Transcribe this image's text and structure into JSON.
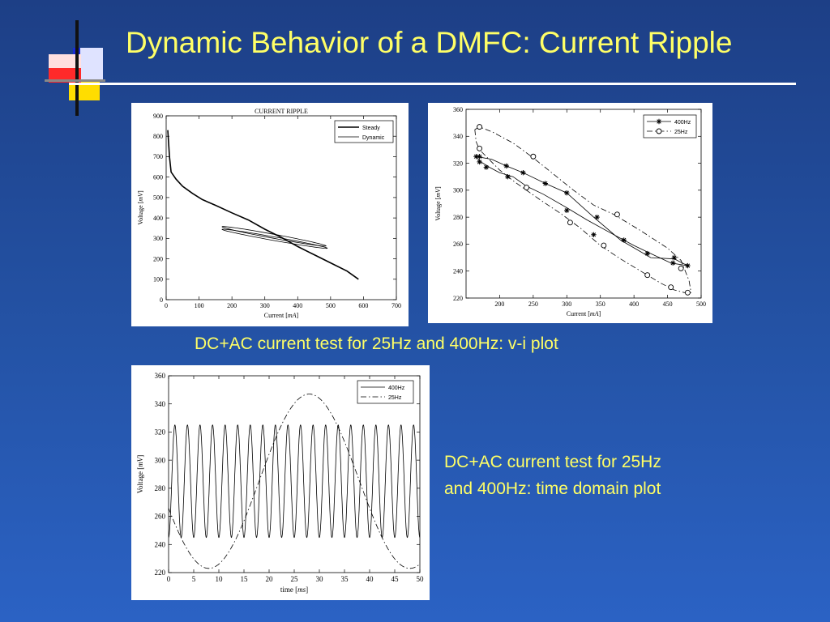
{
  "slide": {
    "title": "Dynamic Behavior of a DMFC: Current Ripple",
    "caption_vi": "DC+AC current test for 25Hz and 400Hz: v-i plot",
    "caption_time": [
      "DC+AC current test for 25Hz",
      "and 400Hz: time domain plot"
    ]
  },
  "colors": {
    "background": "#1d3f86",
    "title": "#ffff66",
    "rule": "#ffffff",
    "logo_red": "#ff2a2a",
    "logo_yellow": "#ffdd00",
    "logo_blue": "#1a2bd6"
  },
  "chart_data": [
    {
      "type": "line",
      "title": "CURRENT RIPPLE",
      "xlabel": "Current [mA]",
      "ylabel": "Voltage [mV]",
      "xlim": [
        0,
        700
      ],
      "ylim": [
        0,
        900
      ],
      "xticks": [
        0,
        100,
        200,
        300,
        400,
        500,
        600,
        700
      ],
      "yticks": [
        0,
        100,
        200,
        300,
        400,
        500,
        600,
        700,
        800,
        900
      ],
      "legend_placement": "top-right",
      "series": [
        {
          "name": "Steady",
          "style": "solid-thick",
          "points": [
            [
              5,
              830
            ],
            [
              10,
              700
            ],
            [
              15,
              625
            ],
            [
              30,
              590
            ],
            [
              50,
              555
            ],
            [
              80,
              520
            ],
            [
              110,
              490
            ],
            [
              150,
              462
            ],
            [
              200,
              425
            ],
            [
              250,
              390
            ],
            [
              300,
              345
            ],
            [
              350,
              305
            ],
            [
              400,
              260
            ],
            [
              450,
              220
            ],
            [
              500,
              180
            ],
            [
              550,
              140
            ],
            [
              585,
              100
            ]
          ]
        },
        {
          "name": "Dynamic",
          "style": "solid-thin",
          "loops": [
            {
              "center": [
                328,
                310
              ],
              "half_axis": [
                158,
                47
              ],
              "thickness": 10
            },
            {
              "center": [
                330,
                298
              ],
              "half_axis": [
                160,
                46
              ],
              "thickness": 9
            }
          ]
        }
      ]
    },
    {
      "type": "line",
      "title": "",
      "xlabel": "Current [mA]",
      "ylabel": "Voltage [mV]",
      "xlim": [
        150,
        500
      ],
      "ylim": [
        220,
        360
      ],
      "xticks": [
        200,
        250,
        300,
        350,
        400,
        450,
        500
      ],
      "yticks": [
        220,
        240,
        260,
        280,
        300,
        320,
        340,
        360
      ],
      "legend_placement": "top-right",
      "series": [
        {
          "name": "400Hz",
          "style": "solid",
          "marker": "star",
          "upper": [
            [
              165,
              325
            ],
            [
              188,
              323
            ],
            [
              210,
              318
            ],
            [
              235,
              313
            ],
            [
              268,
              305
            ],
            [
              300,
              298
            ],
            [
              340,
              280
            ],
            [
              380,
              263
            ],
            [
              425,
              250
            ],
            [
              460,
              249
            ],
            [
              480,
              244
            ]
          ],
          "lower": [
            [
              165,
              325
            ],
            [
              172,
              321
            ],
            [
              185,
              317
            ],
            [
              200,
              313
            ],
            [
              220,
              310
            ],
            [
              240,
              303
            ],
            [
              265,
              297
            ],
            [
              300,
              287
            ],
            [
              330,
              278
            ],
            [
              370,
              267
            ],
            [
              400,
              259
            ],
            [
              425,
              253
            ],
            [
              455,
              246
            ],
            [
              480,
              244
            ]
          ],
          "marker_points": [
            [
              165,
              325
            ],
            [
              170,
              325
            ],
            [
              210,
              318
            ],
            [
              235,
              313
            ],
            [
              268,
              305
            ],
            [
              300,
              298
            ],
            [
              345,
              280
            ],
            [
              385,
              263
            ],
            [
              460,
              250
            ],
            [
              480,
              244
            ],
            [
              170,
              321
            ],
            [
              180,
              317
            ],
            [
              212,
              310
            ],
            [
              240,
              302
            ],
            [
              300,
              285
            ],
            [
              340,
              267
            ],
            [
              420,
              253
            ],
            [
              458,
              246
            ]
          ]
        },
        {
          "name": "25Hz",
          "style": "dash-dot",
          "marker": "circle",
          "upper": [
            [
              163,
              345
            ],
            [
              170,
              347
            ],
            [
              190,
              343
            ],
            [
              220,
              335
            ],
            [
              250,
              324
            ],
            [
              280,
              312
            ],
            [
              310,
              300
            ],
            [
              340,
              289
            ],
            [
              370,
              282
            ],
            [
              410,
              270
            ],
            [
              450,
              257
            ],
            [
              470,
              248
            ],
            [
              482,
              233
            ],
            [
              485,
              224
            ]
          ],
          "lower": [
            [
              163,
              345
            ],
            [
              165,
              336
            ],
            [
              170,
              330
            ],
            [
              180,
              325
            ],
            [
              200,
              315
            ],
            [
              220,
              307
            ],
            [
              240,
              300
            ],
            [
              260,
              293
            ],
            [
              290,
              283
            ],
            [
              320,
              272
            ],
            [
              350,
              259
            ],
            [
              380,
              249
            ],
            [
              410,
              240
            ],
            [
              440,
              231
            ],
            [
              460,
              226
            ],
            [
              475,
              224
            ],
            [
              485,
              224
            ]
          ],
          "marker_points": [
            [
              170,
              347
            ],
            [
              170,
              331
            ],
            [
              240,
              302
            ],
            [
              250,
              325
            ],
            [
              305,
              276
            ],
            [
              355,
              259
            ],
            [
              375,
              282
            ],
            [
              420,
              237
            ],
            [
              455,
              228
            ],
            [
              470,
              242
            ],
            [
              480,
              224
            ]
          ]
        }
      ]
    },
    {
      "type": "line",
      "title": "",
      "xlabel": "time [ms]",
      "ylabel": "Voltage [mV]",
      "xlim": [
        0,
        50
      ],
      "ylim": [
        220,
        360
      ],
      "xticks": [
        0,
        5,
        10,
        15,
        20,
        25,
        30,
        35,
        40,
        45,
        50
      ],
      "yticks": [
        220,
        240,
        260,
        280,
        300,
        320,
        340,
        360
      ],
      "legend_placement": "top-right",
      "series": [
        {
          "name": "400Hz",
          "style": "solid",
          "waveform": {
            "shape": "sine",
            "frequency_per_ms": 0.4,
            "mean": 285,
            "amplitude": 40,
            "phase_deg": -90
          }
        },
        {
          "name": "25Hz",
          "style": "dash-dot",
          "waveform": {
            "shape": "sine",
            "frequency_per_ms": 0.025,
            "mean": 285,
            "amplitude": 62,
            "phase_deg": 198
          }
        }
      ]
    }
  ]
}
